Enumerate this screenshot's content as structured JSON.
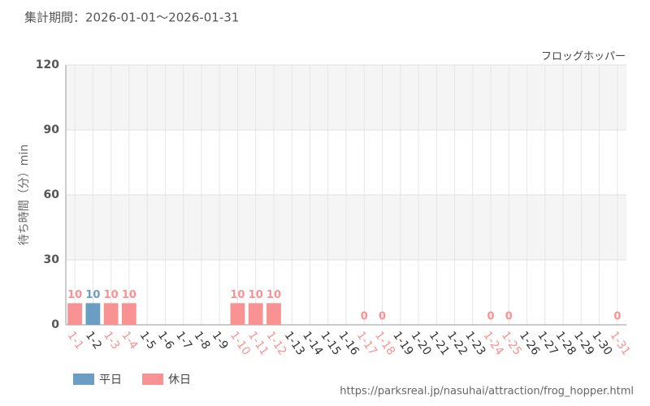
{
  "header": "集計期間：2026-01-01～2026-01-31",
  "footer": "https://parksreal.jp/nasuhai/attraction/frog_hopper.html",
  "chart_data": {
    "type": "bar",
    "title": "フロッグホッパー",
    "y_label": "待ち時間（分）min",
    "categories": [
      "1-1",
      "1-2",
      "1-3",
      "1-4",
      "1-5",
      "1-6",
      "1-7",
      "1-8",
      "1-9",
      "1-10",
      "1-11",
      "1-12",
      "1-13",
      "1-14",
      "1-15",
      "1-16",
      "1-17",
      "1-18",
      "1-19",
      "1-20",
      "1-21",
      "1-22",
      "1-23",
      "1-24",
      "1-25",
      "1-26",
      "1-27",
      "1-28",
      "1-29",
      "1-30",
      "1-31"
    ],
    "series": [
      {
        "name": "平日",
        "color": "#6a9ec5",
        "values": [
          null,
          10,
          null,
          null,
          null,
          null,
          null,
          null,
          null,
          null,
          null,
          null,
          null,
          null,
          null,
          null,
          null,
          null,
          null,
          null,
          null,
          null,
          null,
          null,
          null,
          null,
          null,
          null,
          null,
          null,
          null
        ]
      },
      {
        "name": "休日",
        "color": "#f99393",
        "values": [
          10,
          null,
          10,
          10,
          null,
          null,
          null,
          null,
          null,
          10,
          10,
          10,
          null,
          null,
          null,
          null,
          0,
          0,
          null,
          null,
          null,
          null,
          null,
          0,
          0,
          null,
          null,
          null,
          null,
          null,
          0
        ]
      }
    ],
    "ylim": [
      0,
      120
    ],
    "yticks": [
      0,
      30,
      60,
      90,
      120
    ],
    "grid": true
  }
}
